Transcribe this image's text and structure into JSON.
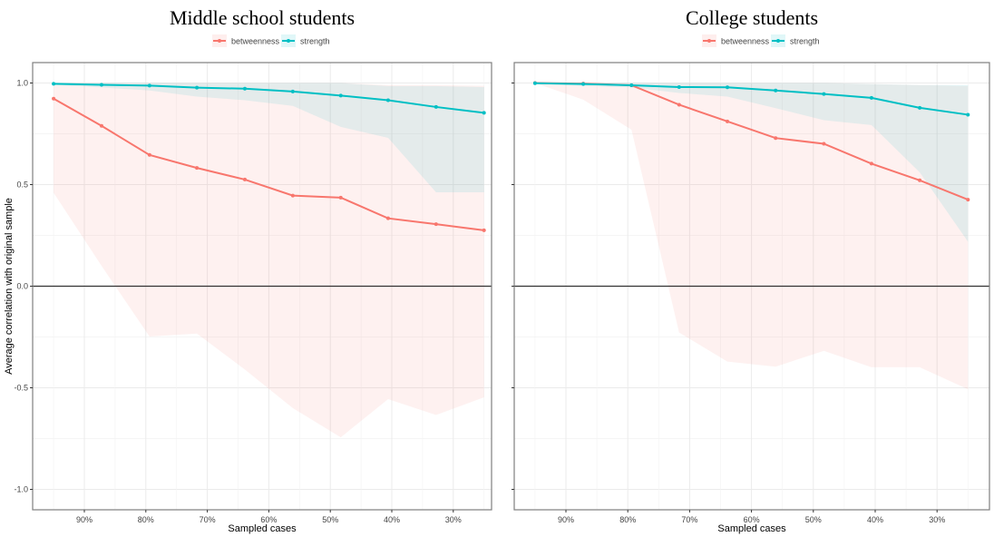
{
  "chart_data": [
    {
      "type": "line",
      "title": "Middle school students",
      "xlabel": "Sampled cases",
      "ylabel": "Average correlation with original sample",
      "ylim": [
        -1.0,
        1.0
      ],
      "xlim_reversed": true,
      "x_ticks": [
        0.9,
        0.8,
        0.7,
        0.6,
        0.5,
        0.4,
        0.3
      ],
      "x_tick_labels": [
        "90%",
        "80%",
        "70%",
        "60%",
        "50%",
        "40%",
        "30%"
      ],
      "y_ticks": [
        1.0,
        0.5,
        0.0,
        -0.5,
        -1.0
      ],
      "y_tick_labels": [
        "1.0",
        "0.5",
        "0.0",
        "-0.5",
        "-1.0"
      ],
      "show_y_tick_labels": true,
      "grid": true,
      "legend": {
        "placement": "top",
        "entries": [
          "betweenness",
          "strength"
        ]
      },
      "x": [
        0.95,
        0.872,
        0.794,
        0.717,
        0.639,
        0.561,
        0.483,
        0.406,
        0.328,
        0.25
      ],
      "series": [
        {
          "name": "betweenness",
          "color": "#F8766D",
          "values": [
            0.923,
            0.789,
            0.646,
            0.582,
            0.525,
            0.446,
            0.436,
            0.334,
            0.305,
            0.275
          ],
          "lower": [
            0.46,
            0.1,
            -0.248,
            -0.233,
            -0.41,
            -0.6,
            -0.744,
            -0.556,
            -0.634,
            -0.547
          ],
          "upper": [
            1.0,
            1.0,
            1.0,
            1.0,
            1.0,
            1.0,
            1.0,
            0.99,
            0.99,
            0.986
          ]
        },
        {
          "name": "strength",
          "color": "#00BFC4",
          "values": [
            0.996,
            0.991,
            0.987,
            0.977,
            0.972,
            0.958,
            0.938,
            0.915,
            0.882,
            0.853
          ],
          "lower": [
            0.99,
            0.978,
            0.963,
            0.933,
            0.915,
            0.887,
            0.784,
            0.73,
            0.462,
            0.462
          ],
          "upper": [
            1.0,
            1.0,
            1.0,
            1.0,
            1.0,
            1.0,
            1.0,
            0.985,
            0.985,
            0.98
          ]
        }
      ]
    },
    {
      "type": "line",
      "title": "College students",
      "xlabel": "Sampled cases",
      "ylabel": "",
      "ylim": [
        -1.0,
        1.0
      ],
      "xlim_reversed": true,
      "x_ticks": [
        0.9,
        0.8,
        0.7,
        0.6,
        0.5,
        0.4,
        0.3
      ],
      "x_tick_labels": [
        "90%",
        "80%",
        "70%",
        "60%",
        "50%",
        "40%",
        "30%"
      ],
      "y_ticks": [
        1.0,
        0.5,
        0.0,
        -0.5,
        -1.0
      ],
      "y_tick_labels": [
        "1.0",
        "0.5",
        "0.0",
        "-0.5",
        "-1.0"
      ],
      "show_y_tick_labels": false,
      "grid": true,
      "legend": {
        "placement": "top",
        "entries": [
          "betweenness",
          "strength"
        ]
      },
      "x": [
        0.95,
        0.872,
        0.794,
        0.717,
        0.639,
        0.561,
        0.483,
        0.406,
        0.328,
        0.25
      ],
      "series": [
        {
          "name": "betweenness",
          "color": "#F8766D",
          "values": [
            1.0,
            0.997,
            0.989,
            0.893,
            0.811,
            0.729,
            0.701,
            0.603,
            0.521,
            0.426
          ],
          "lower": [
            1.0,
            0.918,
            0.77,
            -0.228,
            -0.371,
            -0.396,
            -0.318,
            -0.399,
            -0.399,
            -0.507
          ],
          "upper": [
            1.0,
            1.0,
            1.0,
            1.0,
            1.0,
            1.0,
            1.0,
            0.995,
            0.99,
            0.985
          ]
        },
        {
          "name": "strength",
          "color": "#00BFC4",
          "values": [
            0.999,
            0.995,
            0.989,
            0.98,
            0.979,
            0.963,
            0.946,
            0.927,
            0.878,
            0.844
          ],
          "lower": [
            0.997,
            0.985,
            0.978,
            0.951,
            0.933,
            0.876,
            0.817,
            0.793,
            0.56,
            0.219
          ],
          "upper": [
            1.0,
            1.0,
            1.0,
            1.0,
            1.0,
            1.0,
            1.0,
            0.995,
            0.99,
            0.99
          ]
        }
      ]
    }
  ]
}
